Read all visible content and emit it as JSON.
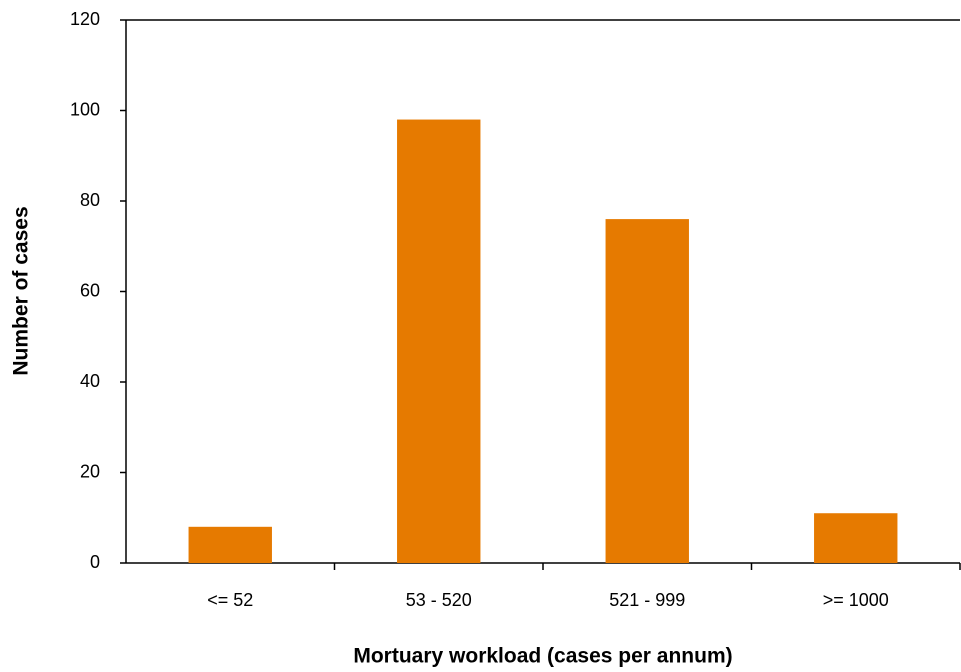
{
  "chart_data": {
    "type": "bar",
    "x_label": "Mortuary workload (cases per annum)",
    "y_label": "Number of cases",
    "categories": [
      "<= 52",
      "53 - 520",
      "521 - 999",
      ">= 1000"
    ],
    "values": [
      8,
      98,
      76,
      11
    ],
    "color": "#e67a00",
    "ylim": [
      0,
      120
    ],
    "yticks": [
      0,
      20,
      40,
      60,
      80,
      100,
      120
    ],
    "grid": false
  }
}
